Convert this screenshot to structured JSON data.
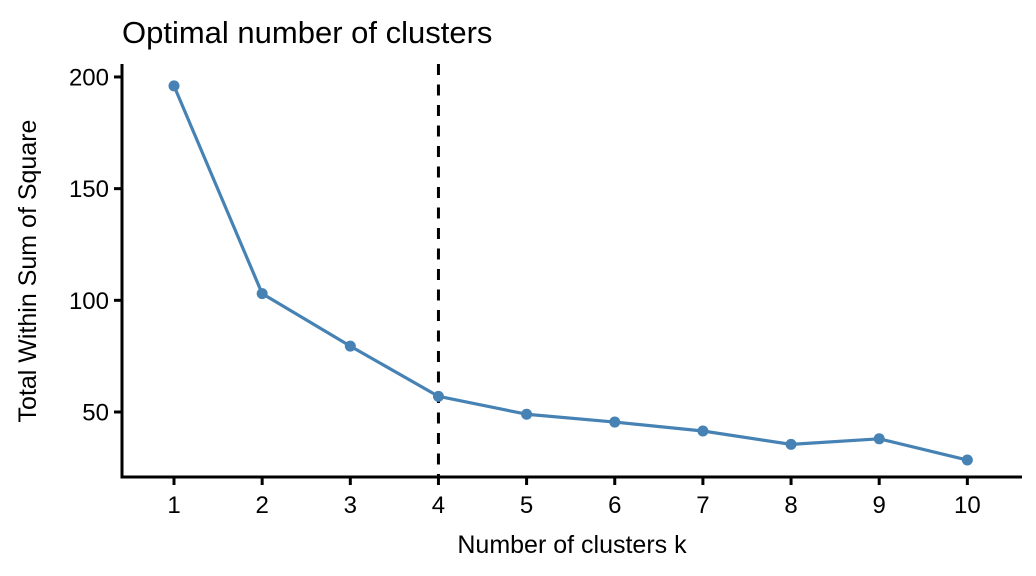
{
  "chart_data": {
    "type": "line",
    "title": "Optimal number of clusters",
    "xlabel": "Number of clusters k",
    "ylabel": "Total Within Sum of Square",
    "x": [
      1,
      2,
      3,
      4,
      5,
      6,
      7,
      8,
      9,
      10
    ],
    "series": [
      {
        "name": "Total within sum of square",
        "values": [
          196,
          103,
          79.5,
          57,
          49,
          45.5,
          41.5,
          35.5,
          38,
          28.5
        ]
      }
    ],
    "xticks": [
      "1",
      "2",
      "3",
      "4",
      "5",
      "6",
      "7",
      "8",
      "9",
      "10"
    ],
    "yticks": [
      50,
      100,
      150,
      200
    ],
    "xlim": [
      0.41,
      10.62
    ],
    "ylim": [
      20.9,
      205.8
    ],
    "optimal_k": 4,
    "grid": "off",
    "legend": "none",
    "line_color": "#4682B4",
    "marker_color": "#4682B4",
    "axis_color": "#000000",
    "dashed_line_color": "#000000",
    "background_color": "#ffffff"
  }
}
